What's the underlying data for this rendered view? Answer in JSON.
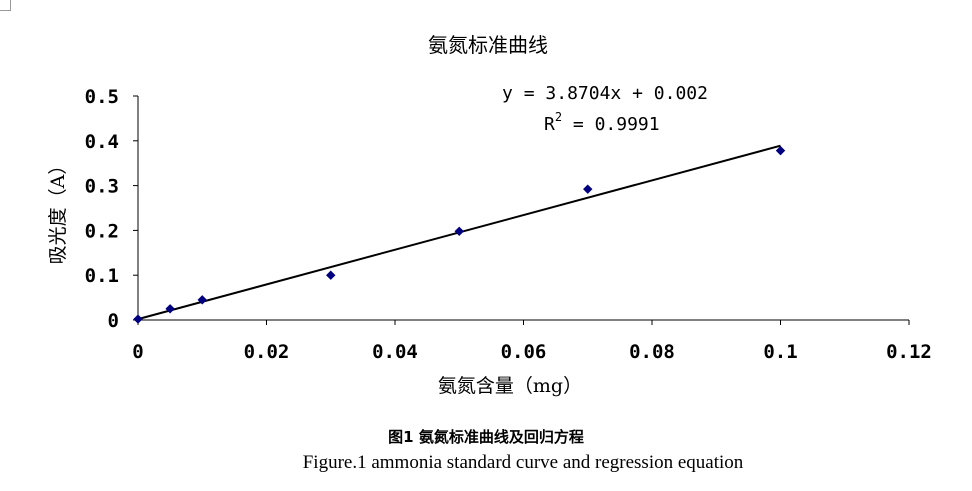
{
  "chart_data": {
    "type": "scatter",
    "title": "氨氮标准曲线",
    "xlabel": "氨氮含量（mg）",
    "ylabel": "吸光度（A）",
    "xlim": [
      0,
      0.12
    ],
    "ylim": [
      0,
      0.5
    ],
    "xticks": [
      "0",
      "0.02",
      "0.04",
      "0.06",
      "0.08",
      "0.1",
      "0.12"
    ],
    "yticks": [
      "0",
      "0.1",
      "0.2",
      "0.3",
      "0.4",
      "0.5"
    ],
    "xtick_values": [
      0,
      0.02,
      0.04,
      0.06,
      0.08,
      0.1,
      0.12
    ],
    "ytick_values": [
      0,
      0.1,
      0.2,
      0.3,
      0.4,
      0.5
    ],
    "points": [
      {
        "x": 0,
        "y": 0.002
      },
      {
        "x": 0.005,
        "y": 0.025
      },
      {
        "x": 0.01,
        "y": 0.045
      },
      {
        "x": 0.03,
        "y": 0.1
      },
      {
        "x": 0.05,
        "y": 0.198
      },
      {
        "x": 0.07,
        "y": 0.292
      },
      {
        "x": 0.1,
        "y": 0.378
      }
    ],
    "trendline": {
      "slope": 3.8704,
      "intercept": 0.002,
      "x_range": [
        0,
        0.1
      ]
    },
    "equation": "y = 3.8704x + 0.002",
    "r2_label": "R",
    "r2_exp": "2",
    "r2_value": " = 0.9991",
    "grid": false,
    "marker_color": "#000080",
    "line_color": "#000000"
  },
  "caption": {
    "zh": "图1 氨氮标准曲线及回归方程",
    "en": "Figure.1 ammonia standard curve and regression equation"
  }
}
